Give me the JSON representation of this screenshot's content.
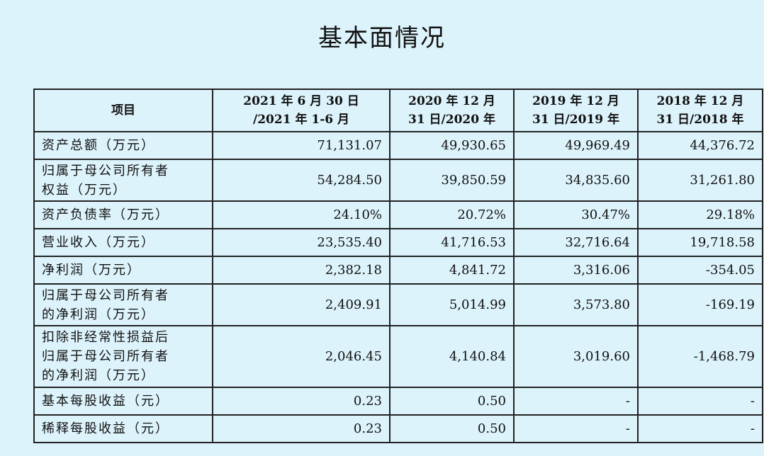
{
  "title": "基本面情况",
  "table": {
    "headers": [
      {
        "lines": [
          "项目"
        ]
      },
      {
        "lines": [
          "2021 年 6 月 30 日",
          "/2021 年 1-6 月"
        ]
      },
      {
        "lines": [
          "2020 年 12 月",
          "31 日/2020 年"
        ]
      },
      {
        "lines": [
          "2019 年 12 月",
          "31 日/2019 年"
        ]
      },
      {
        "lines": [
          "2018 年 12 月",
          "31 日/2018 年"
        ]
      }
    ],
    "rows": [
      {
        "label_lines": [
          "资产总额（万元）"
        ],
        "values": [
          "71,131.07",
          "49,930.65",
          "49,969.49",
          "44,376.72"
        ]
      },
      {
        "label_lines": [
          "归属于母公司所有者",
          "权益（万元）"
        ],
        "values": [
          "54,284.50",
          "39,850.59",
          "34,835.60",
          "31,261.80"
        ]
      },
      {
        "label_lines": [
          "资产负债率（万元）"
        ],
        "values": [
          "24.10%",
          "20.72%",
          "30.47%",
          "29.18%"
        ]
      },
      {
        "label_lines": [
          "营业收入（万元）"
        ],
        "values": [
          "23,535.40",
          "41,716.53",
          "32,716.64",
          "19,718.58"
        ]
      },
      {
        "label_lines": [
          "净利润（万元）"
        ],
        "values": [
          "2,382.18",
          "4,841.72",
          "3,316.06",
          "-354.05"
        ]
      },
      {
        "label_lines": [
          "归属于母公司所有者",
          "的净利润（万元）"
        ],
        "values": [
          "2,409.91",
          "5,014.99",
          "3,573.80",
          "-169.19"
        ]
      },
      {
        "label_lines": [
          "扣除非经常性损益后",
          "归属于母公司所有者",
          "的净利润（万元）"
        ],
        "values": [
          "2,046.45",
          "4,140.84",
          "3,019.60",
          "-1,468.79"
        ]
      },
      {
        "label_lines": [
          "基本每股收益（元）"
        ],
        "values": [
          "0.23",
          "0.50",
          "-",
          "-"
        ]
      },
      {
        "label_lines": [
          "稀释每股收益（元）"
        ],
        "values": [
          "0.23",
          "0.50",
          "-",
          "-"
        ]
      }
    ]
  }
}
